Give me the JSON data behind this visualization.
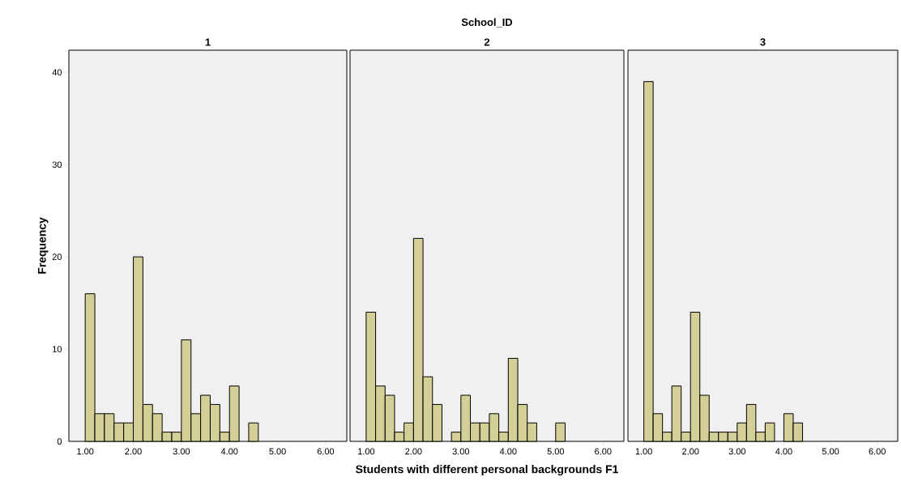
{
  "chart_data": [
    {
      "type": "histogram",
      "title": "1",
      "ylabel": "Frequency",
      "color": "#d4cf96",
      "bins": [
        1.0,
        1.2,
        1.4,
        1.6,
        1.8,
        2.0,
        2.2,
        2.4,
        2.6,
        2.8,
        3.0,
        3.2,
        3.4,
        3.6,
        3.8,
        4.0,
        4.2,
        4.4,
        4.6,
        4.8,
        5.0,
        5.2
      ],
      "values": [
        16,
        3,
        3,
        2,
        2,
        20,
        4,
        3,
        1,
        1,
        11,
        3,
        5,
        4,
        1,
        6,
        0,
        2,
        0,
        0,
        0
      ],
      "xlim": [
        0.66,
        6.44
      ],
      "ylim": [
        0,
        42.4
      ],
      "xticks": [
        {
          "value": 1,
          "label": "1.00"
        },
        {
          "value": 2,
          "label": "2.00"
        },
        {
          "value": 3,
          "label": "3.00"
        },
        {
          "value": 4,
          "label": "4.00"
        },
        {
          "value": 5,
          "label": "5.00"
        },
        {
          "value": 6,
          "label": "6.00"
        }
      ],
      "yticks": [
        0,
        10,
        20,
        30,
        40
      ]
    },
    {
      "type": "histogram",
      "title": "2",
      "xlabel": "Students with different personal backgrounds F1",
      "annotations": [
        "School_ID"
      ],
      "color": "#d4cf96",
      "bins": [
        1.0,
        1.2,
        1.4,
        1.6,
        1.8,
        2.0,
        2.2,
        2.4,
        2.6,
        2.8,
        3.0,
        3.2,
        3.4,
        3.6,
        3.8,
        4.0,
        4.2,
        4.4,
        4.6,
        4.8,
        5.0,
        5.2
      ],
      "values": [
        14,
        6,
        5,
        1,
        2,
        22,
        7,
        4,
        0,
        1,
        5,
        2,
        2,
        3,
        1,
        9,
        4,
        2,
        0,
        0,
        2
      ],
      "xlim": [
        0.66,
        6.44
      ],
      "ylim": [
        0,
        42.4
      ],
      "xticks": [
        {
          "value": 1,
          "label": "1.00"
        },
        {
          "value": 2,
          "label": "2.00"
        },
        {
          "value": 3,
          "label": "3.00"
        },
        {
          "value": 4,
          "label": "4.00"
        },
        {
          "value": 5,
          "label": "5.00"
        },
        {
          "value": 6,
          "label": "6.00"
        }
      ],
      "yticks": [
        0,
        10,
        20,
        30,
        40
      ],
      "tick_labels": "x"
    },
    {
      "type": "histogram",
      "title": "3",
      "color": "#d4cf96",
      "bins": [
        1.0,
        1.2,
        1.4,
        1.6,
        1.8,
        2.0,
        2.2,
        2.4,
        2.6,
        2.8,
        3.0,
        3.2,
        3.4,
        3.6,
        3.8,
        4.0,
        4.2,
        4.4,
        4.6,
        4.8,
        5.0,
        5.2
      ],
      "values": [
        39,
        3,
        1,
        6,
        1,
        14,
        5,
        1,
        1,
        1,
        2,
        4,
        1,
        2,
        0,
        3,
        2,
        0,
        0,
        0,
        0
      ],
      "xlim": [
        0.66,
        6.44
      ],
      "ylim": [
        0,
        42.4
      ],
      "xticks": [
        {
          "value": 1,
          "label": "1.00"
        },
        {
          "value": 2,
          "label": "2.00"
        },
        {
          "value": 3,
          "label": "3.00"
        },
        {
          "value": 4,
          "label": "4.00"
        },
        {
          "value": 5,
          "label": "5.00"
        },
        {
          "value": 6,
          "label": "6.00"
        }
      ],
      "yticks": [
        0,
        10,
        20,
        30,
        40
      ],
      "tick_labels": "x"
    }
  ]
}
